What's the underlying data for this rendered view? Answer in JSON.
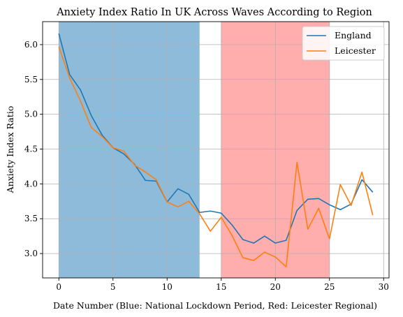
{
  "chart_data": {
    "type": "line",
    "title": "Anxiety Index Ratio In UK Across Waves According to Region",
    "xlabel": "Date Number (Blue: National Lockdown Period, Red: Leicester Regional)",
    "ylabel": "Anxiety Index Ratio",
    "xlim": [
      -1.5,
      30.5
    ],
    "ylim": [
      2.65,
      6.33
    ],
    "xticks": [
      0,
      5,
      10,
      15,
      20,
      25,
      30
    ],
    "yticks": [
      3.0,
      3.5,
      4.0,
      4.5,
      5.0,
      5.5,
      6.0
    ],
    "grid": true,
    "legend_position": "top-right",
    "shaded_regions": [
      {
        "x_start": 0,
        "x_end": 13,
        "color": "#8fbbdb"
      },
      {
        "x_start": 15,
        "x_end": 25,
        "color": "#ffadad"
      }
    ],
    "x": [
      0,
      1,
      2,
      3,
      4,
      5,
      6,
      7,
      8,
      9,
      10,
      11,
      12,
      13,
      14,
      15,
      16,
      17,
      18,
      19,
      20,
      21,
      22,
      23,
      24,
      25,
      26,
      27,
      28,
      29
    ],
    "series": [
      {
        "name": "England",
        "color": "#1f77b4",
        "values": [
          6.16,
          5.57,
          5.35,
          4.98,
          4.7,
          4.52,
          4.43,
          4.28,
          4.05,
          4.04,
          3.74,
          3.93,
          3.85,
          3.59,
          3.61,
          3.58,
          3.41,
          3.2,
          3.15,
          3.25,
          3.15,
          3.19,
          3.62,
          3.78,
          3.79,
          3.7,
          3.63,
          3.71,
          4.06,
          3.88
        ]
      },
      {
        "name": "Leicester",
        "color": "#ff7f0e",
        "values": [
          5.97,
          5.52,
          5.19,
          4.81,
          4.68,
          4.52,
          4.47,
          4.27,
          4.17,
          4.06,
          3.74,
          3.67,
          3.75,
          3.57,
          3.32,
          3.52,
          3.26,
          2.94,
          2.9,
          3.02,
          2.95,
          2.81,
          4.31,
          3.35,
          3.65,
          3.21,
          3.99,
          3.69,
          4.17,
          3.55
        ]
      }
    ]
  }
}
